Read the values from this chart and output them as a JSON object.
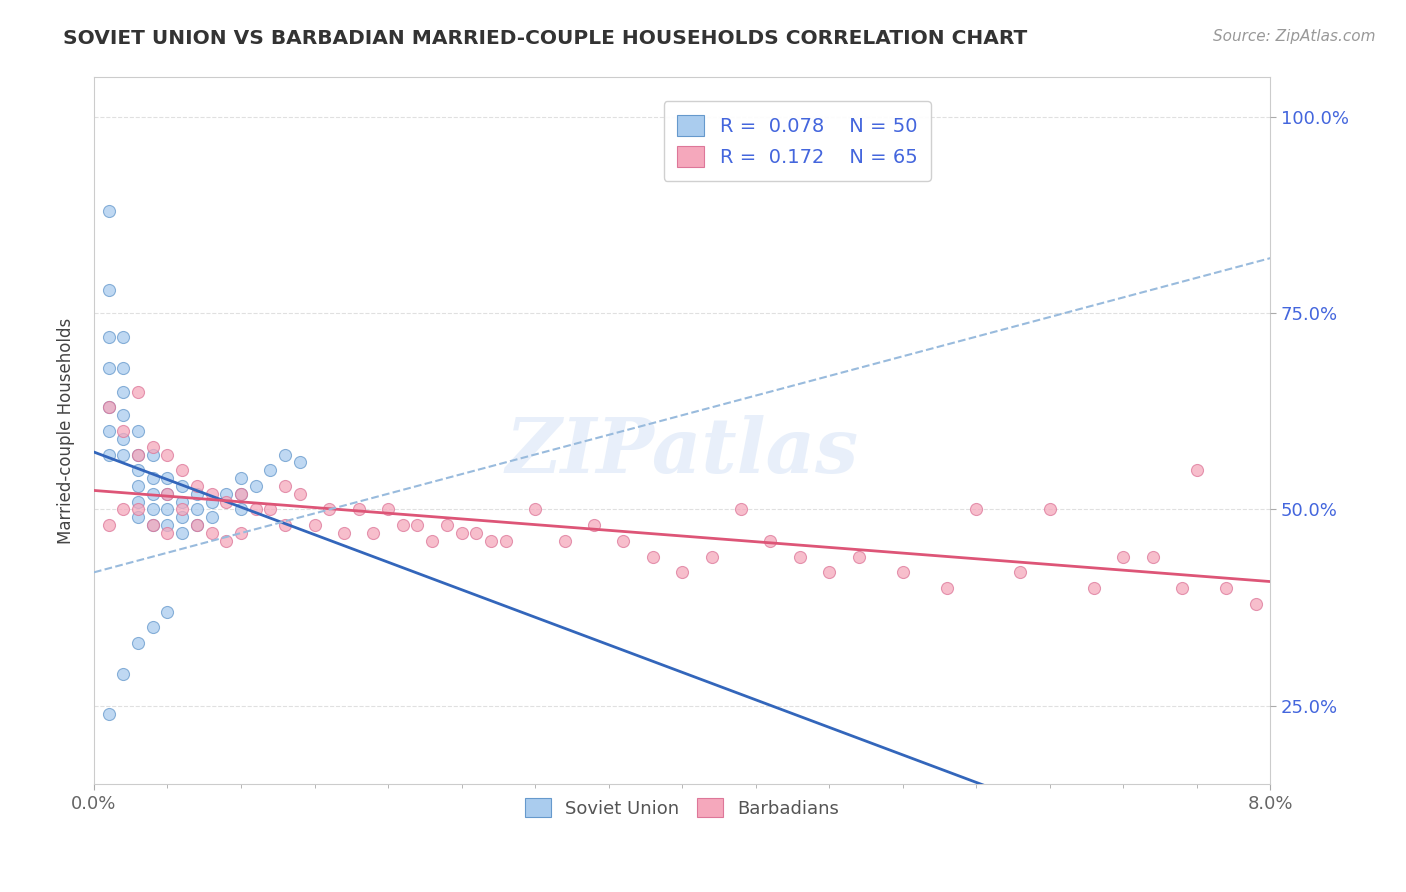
{
  "title": "SOVIET UNION VS BARBADIAN MARRIED-COUPLE HOUSEHOLDS CORRELATION CHART",
  "source_text": "Source: ZipAtlas.com",
  "ylabel": "Married-couple Households",
  "xlim": [
    0.0,
    0.08
  ],
  "ylim": [
    0.15,
    1.05
  ],
  "x_tick_labels": [
    "0.0%",
    "8.0%"
  ],
  "y_tick_labels": [
    "25.0%",
    "50.0%",
    "75.0%",
    "100.0%"
  ],
  "y_ticks": [
    0.25,
    0.5,
    0.75,
    1.0
  ],
  "soviet_color": "#aaccee",
  "barbadian_color": "#f5a8bc",
  "soviet_edge": "#6699cc",
  "barbadian_edge": "#dd7799",
  "soviet_R": 0.078,
  "soviet_N": 50,
  "barbadian_R": 0.172,
  "barbadian_N": 65,
  "soviet_line_color": "#3366bb",
  "barbadian_line_color": "#dd5577",
  "dashed_line_color": "#99bbdd",
  "watermark": "ZIPatlas",
  "background_color": "#ffffff",
  "grid_color": "#dddddd",
  "right_tick_color": "#4466dd",
  "soviet_x": [
    0.001,
    0.001,
    0.001,
    0.001,
    0.001,
    0.001,
    0.001,
    0.002,
    0.002,
    0.002,
    0.002,
    0.002,
    0.002,
    0.003,
    0.003,
    0.003,
    0.003,
    0.003,
    0.003,
    0.004,
    0.004,
    0.004,
    0.004,
    0.004,
    0.005,
    0.005,
    0.005,
    0.005,
    0.006,
    0.006,
    0.006,
    0.006,
    0.007,
    0.007,
    0.007,
    0.008,
    0.008,
    0.009,
    0.01,
    0.01,
    0.01,
    0.011,
    0.012,
    0.013,
    0.014,
    0.001,
    0.002,
    0.003,
    0.004,
    0.005
  ],
  "soviet_y": [
    0.88,
    0.78,
    0.72,
    0.68,
    0.63,
    0.6,
    0.57,
    0.72,
    0.68,
    0.65,
    0.62,
    0.59,
    0.57,
    0.6,
    0.57,
    0.55,
    0.53,
    0.51,
    0.49,
    0.57,
    0.54,
    0.52,
    0.5,
    0.48,
    0.54,
    0.52,
    0.5,
    0.48,
    0.53,
    0.51,
    0.49,
    0.47,
    0.52,
    0.5,
    0.48,
    0.51,
    0.49,
    0.52,
    0.54,
    0.52,
    0.5,
    0.53,
    0.55,
    0.57,
    0.56,
    0.24,
    0.29,
    0.33,
    0.35,
    0.37
  ],
  "barbadian_x": [
    0.001,
    0.001,
    0.002,
    0.002,
    0.003,
    0.003,
    0.003,
    0.004,
    0.004,
    0.005,
    0.005,
    0.005,
    0.006,
    0.006,
    0.007,
    0.007,
    0.008,
    0.008,
    0.009,
    0.009,
    0.01,
    0.01,
    0.011,
    0.012,
    0.013,
    0.013,
    0.014,
    0.015,
    0.016,
    0.017,
    0.018,
    0.019,
    0.02,
    0.021,
    0.022,
    0.023,
    0.024,
    0.025,
    0.026,
    0.027,
    0.028,
    0.03,
    0.032,
    0.034,
    0.036,
    0.038,
    0.04,
    0.042,
    0.044,
    0.046,
    0.048,
    0.05,
    0.052,
    0.055,
    0.058,
    0.06,
    0.063,
    0.065,
    0.068,
    0.07,
    0.072,
    0.074,
    0.075,
    0.077,
    0.079
  ],
  "barbadian_y": [
    0.63,
    0.48,
    0.6,
    0.5,
    0.65,
    0.57,
    0.5,
    0.58,
    0.48,
    0.57,
    0.52,
    0.47,
    0.55,
    0.5,
    0.53,
    0.48,
    0.52,
    0.47,
    0.51,
    0.46,
    0.52,
    0.47,
    0.5,
    0.5,
    0.53,
    0.48,
    0.52,
    0.48,
    0.5,
    0.47,
    0.5,
    0.47,
    0.5,
    0.48,
    0.48,
    0.46,
    0.48,
    0.47,
    0.47,
    0.46,
    0.46,
    0.5,
    0.46,
    0.48,
    0.46,
    0.44,
    0.42,
    0.44,
    0.5,
    0.46,
    0.44,
    0.42,
    0.44,
    0.42,
    0.4,
    0.5,
    0.42,
    0.5,
    0.4,
    0.44,
    0.44,
    0.4,
    0.55,
    0.4,
    0.38
  ]
}
